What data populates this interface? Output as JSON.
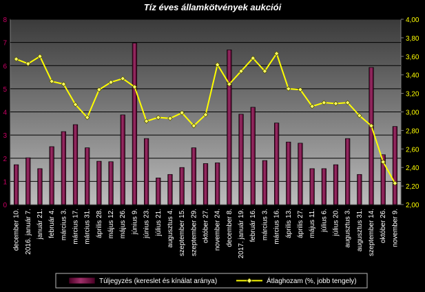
{
  "chart_data": {
    "type": "bar",
    "title": "Tíz éves államkötvények aukciói",
    "categories": [
      "december 10.",
      "2016. január 7.",
      "január 21.",
      "február 4.",
      "március 3.",
      "március 17.",
      "március 31.",
      "április 28.",
      "május 12.",
      "május 26.",
      "június 9.",
      "június 23.",
      "július 21.",
      "augusztus 4.",
      "szeptember 15.",
      "szeptember 29.",
      "október 27.",
      "november 24.",
      "december 8.",
      "2017. január 19.",
      "február 16.",
      "március 3.",
      "március 16.",
      "április 13.",
      "április 27.",
      "május 11.",
      "július 6.",
      "július 20.",
      "augusztus 3.",
      "augusztus 31.",
      "szeptember 14.",
      "október 26.",
      "november 9."
    ],
    "series": [
      {
        "name": "Túljegyzés (kereslet és kínálat aránya)",
        "kind": "bar",
        "axis": "left",
        "color": "#800040",
        "values": [
          1.72,
          2.02,
          1.55,
          2.5,
          3.15,
          3.45,
          2.45,
          1.87,
          1.85,
          3.87,
          6.97,
          2.85,
          1.15,
          1.3,
          1.6,
          2.45,
          1.77,
          1.8,
          6.68,
          3.9,
          4.2,
          1.9,
          3.52,
          2.7,
          2.65,
          1.55,
          1.55,
          1.72,
          2.85,
          1.3,
          5.92,
          2.15,
          3.37
        ]
      },
      {
        "name": "Átlaghozam (%, jobb tengely)",
        "kind": "line",
        "axis": "right",
        "color": "#ffff00",
        "values": [
          3.57,
          3.52,
          3.6,
          3.33,
          3.3,
          3.08,
          2.94,
          3.24,
          3.32,
          3.36,
          3.27,
          2.9,
          2.94,
          2.93,
          2.99,
          2.85,
          2.97,
          3.51,
          3.3,
          3.44,
          3.58,
          3.44,
          3.63,
          3.25,
          3.24,
          3.06,
          3.1,
          3.09,
          3.1,
          2.96,
          2.85,
          2.46,
          2.23
        ]
      }
    ],
    "y_left": {
      "min": 0,
      "max": 8,
      "ticks": [
        "0",
        "1",
        "2",
        "3",
        "4",
        "5",
        "6",
        "7",
        "8"
      ]
    },
    "y_right": {
      "min": 2.0,
      "max": 4.0,
      "ticks": [
        "2,00",
        "2,20",
        "2,40",
        "2,60",
        "2,80",
        "3,00",
        "3,20",
        "3,40",
        "3,60",
        "3,80",
        "4,00"
      ]
    },
    "grid": true,
    "legend_position": "bottom"
  }
}
